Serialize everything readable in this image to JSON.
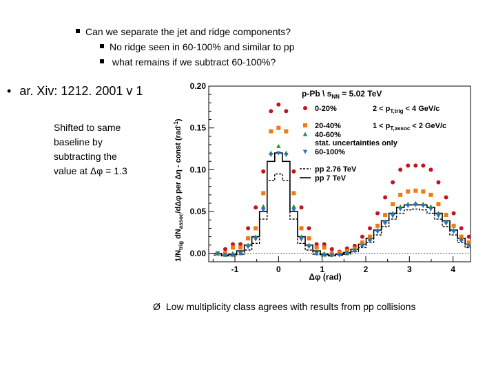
{
  "bullets": {
    "main": "Can we separate the jet and ridge components?",
    "sub1": "No ridge seen in 60-100% and similar to pp",
    "sub2": " what remains if we subtract 60-100%?"
  },
  "reference": {
    "marker": "•",
    "text": "ar. Xiv: 1212. 2001 v 1"
  },
  "note": {
    "line1": "Shifted to same",
    "line2": "baseline by",
    "line3": "subtracting the",
    "line4": "value at Δφ = 1.3"
  },
  "conclusion": {
    "marker": "Ø",
    "text": "Low multiplicity class agrees with results from pp collisions"
  },
  "chart_data": {
    "type": "scatter",
    "title": "p-Pb \\ s",
    "title_sub": "NN",
    "title_tail": " = 5.02 TeV",
    "cut1": "2 < p",
    "cut1_sub": "T,trig",
    "cut1_tail": " < 4 GeV/c",
    "cut2": "1 < p",
    "cut2_sub": "T,assoc",
    "cut2_tail": " < 2 GeV/c",
    "xlabel": "Δφ (rad)",
    "ylabel": "1/N",
    "ylabel_sub1": "trig",
    "ylabel_mid": " dN",
    "ylabel_sub2": "assoc",
    "ylabel_tail": "/dΔφ per Δη - const (rad",
    "ylabel_sup": "-1",
    "ylabel_close": ")",
    "xlim": [
      -1.6,
      4.4
    ],
    "ylim": [
      -0.01,
      0.2
    ],
    "xticks": [
      "-1",
      "0",
      "1",
      "2",
      "3",
      "4"
    ],
    "xtick_values": [
      -1,
      0,
      1,
      2,
      3,
      4
    ],
    "yticks": [
      "0.00",
      "0.05",
      "0.10",
      "0.15",
      "0.20"
    ],
    "ytick_values": [
      0,
      0.05,
      0.1,
      0.15,
      0.2
    ],
    "x": [
      -1.3963,
      -1.2217,
      -1.0472,
      -0.8727,
      -0.6981,
      -0.5236,
      -0.3491,
      -0.1745,
      0.0,
      0.1745,
      0.3491,
      0.5236,
      0.6981,
      0.8727,
      1.0472,
      1.2217,
      1.3963,
      1.5708,
      1.7453,
      1.9199,
      2.0944,
      2.2689,
      2.4435,
      2.618,
      2.7925,
      2.9671,
      3.1416,
      3.3161,
      3.4907,
      3.6652,
      3.8397,
      4.0143,
      4.1888,
      4.3633
    ],
    "series": [
      {
        "name": "0-20%",
        "color": "#c0141e",
        "marker": "circle",
        "values": [
          0.0,
          0.005,
          0.011,
          0.011,
          0.03,
          0.055,
          0.098,
          0.17,
          0.178,
          0.17,
          0.098,
          0.055,
          0.03,
          0.011,
          0.011,
          0.005,
          0.002,
          0.006,
          0.009,
          0.02,
          0.03,
          0.048,
          0.067,
          0.085,
          0.1,
          0.105,
          0.105,
          0.105,
          0.1,
          0.085,
          0.067,
          0.048,
          0.03,
          0.02
        ]
      },
      {
        "name": "20-40%",
        "color": "#f07a14",
        "marker": "square",
        "values": [
          0.0,
          0.0,
          0.007,
          0.007,
          0.018,
          0.03,
          0.072,
          0.146,
          0.15,
          0.146,
          0.072,
          0.03,
          0.018,
          0.007,
          0.007,
          0.0,
          0.001,
          0.003,
          0.006,
          0.013,
          0.02,
          0.033,
          0.046,
          0.059,
          0.07,
          0.074,
          0.075,
          0.074,
          0.07,
          0.059,
          0.046,
          0.033,
          0.02,
          0.013
        ]
      },
      {
        "name": "40-60%",
        "color": "#2e8b3e",
        "marker": "triangle",
        "values": [
          0.0,
          -0.002,
          0.0,
          0.0,
          0.01,
          0.02,
          0.056,
          0.12,
          0.128,
          0.12,
          0.056,
          0.02,
          0.01,
          0.0,
          0.0,
          -0.002,
          -0.001,
          0.0,
          0.004,
          0.01,
          0.017,
          0.028,
          0.038,
          0.048,
          0.056,
          0.059,
          0.06,
          0.059,
          0.056,
          0.048,
          0.038,
          0.028,
          0.017,
          0.01
        ]
      },
      {
        "name": "60-100%",
        "color": "#2a6fc9",
        "marker": "triangle-down",
        "values": [
          0.0,
          -0.002,
          -0.002,
          0.0,
          0.008,
          0.017,
          0.052,
          0.118,
          0.12,
          0.118,
          0.052,
          0.017,
          0.008,
          0.0,
          -0.002,
          -0.002,
          -0.002,
          0.0,
          0.003,
          0.009,
          0.015,
          0.026,
          0.036,
          0.045,
          0.053,
          0.057,
          0.058,
          0.057,
          0.053,
          0.045,
          0.036,
          0.026,
          0.015,
          0.009
        ]
      },
      {
        "name": "pp 2.76 TeV",
        "color": "#000000",
        "marker": "dashed-line",
        "values": [
          -0.002,
          -0.003,
          -0.003,
          -0.001,
          0.004,
          0.012,
          0.041,
          0.087,
          0.095,
          0.087,
          0.041,
          0.012,
          0.004,
          -0.001,
          -0.003,
          -0.003,
          -0.002,
          -0.001,
          0.002,
          0.007,
          0.013,
          0.022,
          0.032,
          0.041,
          0.048,
          0.052,
          0.053,
          0.052,
          0.048,
          0.041,
          0.032,
          0.022,
          0.013,
          0.007
        ]
      },
      {
        "name": "pp 7 TeV",
        "color": "#000000",
        "marker": "solid-line",
        "values": [
          0.0,
          -0.002,
          -0.001,
          0.003,
          0.01,
          0.02,
          0.05,
          0.11,
          0.12,
          0.11,
          0.05,
          0.02,
          0.01,
          0.003,
          -0.001,
          -0.002,
          -0.001,
          0.001,
          0.005,
          0.011,
          0.018,
          0.028,
          0.039,
          0.048,
          0.055,
          0.058,
          0.058,
          0.058,
          0.055,
          0.048,
          0.039,
          0.028,
          0.018,
          0.011
        ]
      }
    ],
    "legend_extra": "stat. uncertainties only",
    "legend_position": "top-right",
    "baseline": 0
  }
}
